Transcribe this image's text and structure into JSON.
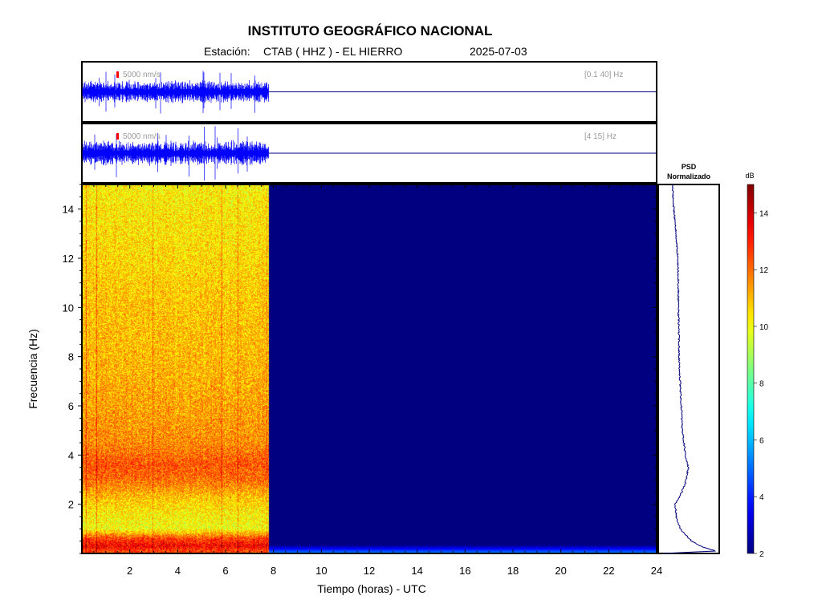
{
  "header": {
    "title": "INSTITUTO GEOGRÁFICO NACIONAL",
    "station_prefix": "Estación:",
    "station": "CTAB ( HHZ ) - EL HIERRO",
    "date": "2025-07-03"
  },
  "colors": {
    "trace": "#0000ff",
    "flat_line": "#000080",
    "background_spectrogram": "#00008f",
    "frame": "#000000",
    "scale_marker": "#ff0000"
  },
  "chart_data": [
    {
      "type": "line",
      "name": "trace-broadband",
      "scale_label": "5000 nm/s",
      "band_label": "[0.1 40] Hz",
      "x_range_hours": [
        0,
        24
      ],
      "data_end_hour": 7.8,
      "amplitude_fraction": 0.45
    },
    {
      "type": "line",
      "name": "trace-filtered",
      "scale_label": "5000 nm/s",
      "band_label": "[4 15] Hz",
      "x_range_hours": [
        0,
        24
      ],
      "data_end_hour": 7.8,
      "amplitude_fraction": 0.5
    },
    {
      "type": "heatmap",
      "name": "spectrogram",
      "xlabel": "Tiempo (horas) - UTC",
      "ylabel": "Frecuencia  (Hz)",
      "xlim": [
        0,
        24
      ],
      "ylim": [
        0,
        15
      ],
      "x_ticks": [
        2,
        4,
        6,
        8,
        10,
        12,
        14,
        16,
        18,
        20,
        22,
        24
      ],
      "y_ticks": [
        2,
        4,
        6,
        8,
        10,
        12,
        14
      ],
      "data_end_hour": 7.8,
      "profile": [
        {
          "f": 0.1,
          "db": 12.5
        },
        {
          "f": 0.3,
          "db": 13.5
        },
        {
          "f": 0.6,
          "db": 12.5
        },
        {
          "f": 1.0,
          "db": 10.0
        },
        {
          "f": 1.6,
          "db": 10.3
        },
        {
          "f": 2.2,
          "db": 10.8
        },
        {
          "f": 3.0,
          "db": 12.0
        },
        {
          "f": 3.6,
          "db": 12.3
        },
        {
          "f": 4.5,
          "db": 11.6
        },
        {
          "f": 6.0,
          "db": 11.3
        },
        {
          "f": 8.0,
          "db": 11.0
        },
        {
          "f": 10.0,
          "db": 10.9
        },
        {
          "f": 12.0,
          "db": 10.6
        },
        {
          "f": 14.0,
          "db": 10.4
        },
        {
          "f": 15.0,
          "db": 10.2
        }
      ],
      "empty_db": 2.0
    },
    {
      "type": "line",
      "name": "psd",
      "title_line1": "PSD",
      "title_line2": "Normalizado",
      "ylim": [
        0,
        15
      ],
      "points": [
        {
          "f": 0.0,
          "v": 0.05
        },
        {
          "f": 0.1,
          "v": 0.97
        },
        {
          "f": 0.25,
          "v": 0.75
        },
        {
          "f": 0.5,
          "v": 0.55
        },
        {
          "f": 1.0,
          "v": 0.35
        },
        {
          "f": 1.5,
          "v": 0.28
        },
        {
          "f": 2.0,
          "v": 0.27
        },
        {
          "f": 2.5,
          "v": 0.38
        },
        {
          "f": 3.0,
          "v": 0.46
        },
        {
          "f": 3.5,
          "v": 0.49
        },
        {
          "f": 4.0,
          "v": 0.44
        },
        {
          "f": 5.0,
          "v": 0.39
        },
        {
          "f": 6.0,
          "v": 0.37
        },
        {
          "f": 7.0,
          "v": 0.35
        },
        {
          "f": 8.0,
          "v": 0.33
        },
        {
          "f": 9.0,
          "v": 0.33
        },
        {
          "f": 10.0,
          "v": 0.32
        },
        {
          "f": 11.0,
          "v": 0.32
        },
        {
          "f": 12.0,
          "v": 0.31
        },
        {
          "f": 13.0,
          "v": 0.28
        },
        {
          "f": 14.0,
          "v": 0.24
        },
        {
          "f": 15.0,
          "v": 0.22
        }
      ]
    },
    {
      "type": "heatmap",
      "name": "colorbar",
      "title": "dB",
      "range": [
        2,
        15
      ],
      "ticks": [
        2,
        4,
        6,
        8,
        10,
        12,
        14
      ]
    }
  ]
}
